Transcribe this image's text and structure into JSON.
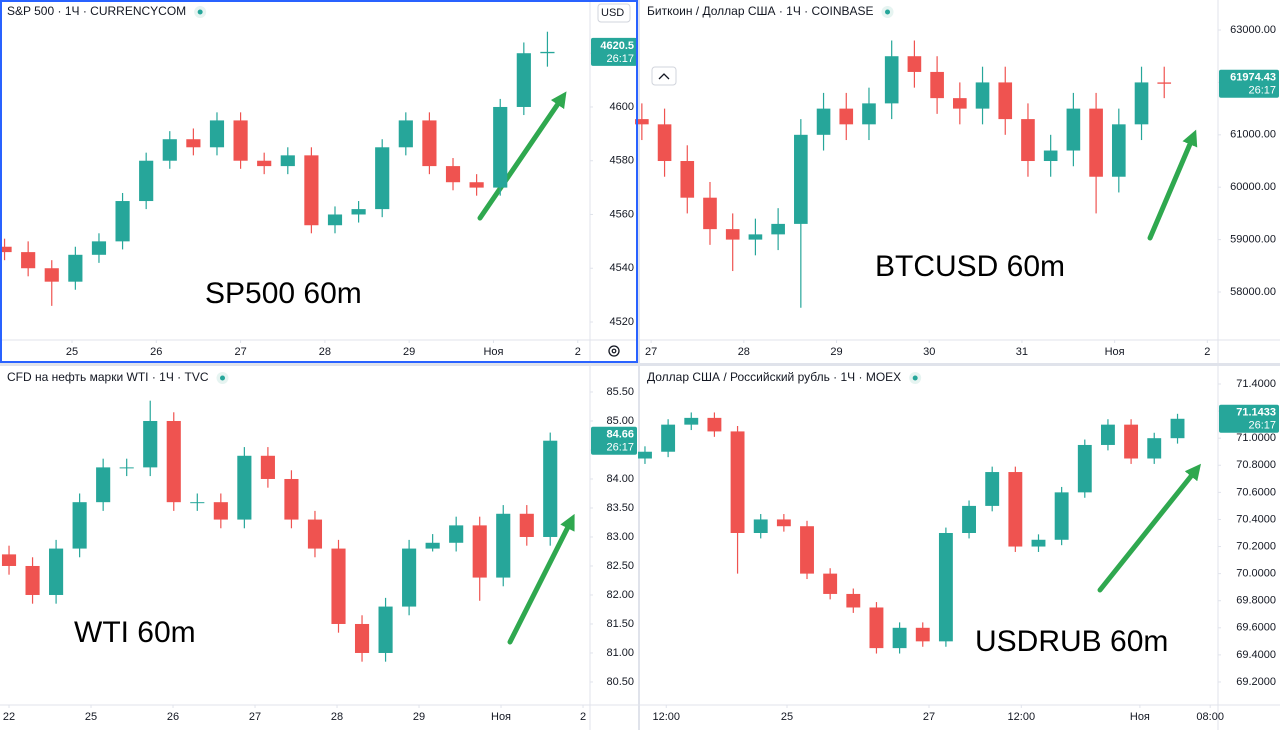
{
  "chart_data": [
    {
      "type": "candlestick",
      "title": "S&P 500 · 1Ч · CURRENCYCOM",
      "currency": "USD",
      "annotation": "SP500 60m",
      "up_color": "#26a69a",
      "down_color": "#ef5350",
      "grid": false,
      "x": [
        -0.8,
        -0.52,
        -0.24,
        0.04,
        0.32,
        0.6,
        0.88,
        1.16,
        1.44,
        1.72,
        2.0,
        2.28,
        2.56,
        2.84,
        3.12,
        3.4,
        3.68,
        3.96,
        4.24,
        4.52,
        4.8,
        5.08,
        5.36,
        5.64
      ],
      "open": [
        4548,
        4546,
        4540,
        4535,
        4545,
        4550,
        4565,
        4580,
        4588,
        4585,
        4595,
        4580,
        4578,
        4582,
        4556,
        4560,
        4562,
        4585,
        4595,
        4578,
        4572,
        4570,
        4600,
        4620
      ],
      "high": [
        4551,
        4550,
        4543,
        4548,
        4553,
        4568,
        4583,
        4591,
        4592,
        4598,
        4598,
        4583,
        4585,
        4585,
        4563,
        4565,
        4588,
        4598,
        4598,
        4581,
        4575,
        4603,
        4624,
        4628
      ],
      "low": [
        4543,
        4537,
        4526,
        4532,
        4542,
        4547,
        4562,
        4577,
        4582,
        4582,
        4577,
        4575,
        4575,
        4553,
        4553,
        4557,
        4559,
        4582,
        4575,
        4569,
        4567,
        4567,
        4597,
        4615
      ],
      "close": [
        4546,
        4540,
        4535,
        4545,
        4550,
        4565,
        4580,
        4588,
        4585,
        4595,
        4580,
        4578,
        4582,
        4556,
        4560,
        4562,
        4585,
        4595,
        4578,
        4572,
        4570,
        4600,
        4620,
        4620.5
      ],
      "xlim": [
        -0.854,
        6.145
      ],
      "xticks": [
        {
          "value": 0,
          "label": "25"
        },
        {
          "value": 1,
          "label": "26"
        },
        {
          "value": 2,
          "label": "27"
        },
        {
          "value": 3,
          "label": "28"
        },
        {
          "value": 4,
          "label": "29"
        },
        {
          "value": 5,
          "label": "Ноя"
        },
        {
          "value": 6,
          "label": "2"
        }
      ],
      "ylim": [
        4513.3,
        4639.8
      ],
      "yticks": [
        4520,
        4540,
        4560,
        4580,
        4600,
        4620
      ],
      "last_price": 4620.5,
      "timer": "26:17"
    },
    {
      "type": "candlestick",
      "title": "Биткоин / Доллар США · 1Ч · COINBASE",
      "annotation": "BTCUSD 60m",
      "up_color": "#26a69a",
      "down_color": "#ef5350",
      "grid": false,
      "x": [
        26.9,
        27.145,
        27.39,
        27.635,
        27.88,
        28.125,
        28.37,
        28.615,
        28.86,
        29.105,
        29.35,
        29.595,
        29.84,
        30.085,
        30.33,
        30.575,
        30.82,
        31.065,
        31.31,
        31.555,
        31.8,
        32.045,
        32.29,
        32.535
      ],
      "open": [
        61300,
        61200,
        60500,
        59800,
        59200,
        59000,
        59100,
        59300,
        61000,
        61500,
        61200,
        61600,
        62500,
        62200,
        61700,
        61500,
        62000,
        61300,
        60500,
        60700,
        61500,
        60200,
        61200,
        62000
      ],
      "high": [
        61600,
        61500,
        60800,
        60100,
        59500,
        59400,
        59600,
        61300,
        61800,
        61800,
        61900,
        62800,
        62800,
        62500,
        62000,
        62300,
        62300,
        61600,
        61000,
        61800,
        61800,
        61500,
        62300,
        62300
      ],
      "low": [
        60900,
        60200,
        59500,
        58900,
        58400,
        58700,
        58800,
        57700,
        60700,
        60900,
        60900,
        61300,
        61900,
        61400,
        61200,
        61200,
        61000,
        60200,
        60200,
        60400,
        59500,
        59900,
        60900,
        61700
      ],
      "close": [
        61200,
        60500,
        59800,
        59200,
        59000,
        59100,
        59300,
        61000,
        61500,
        61200,
        61600,
        62500,
        62200,
        61700,
        61500,
        62000,
        61300,
        60500,
        60700,
        61500,
        60200,
        61200,
        62000,
        61974.43
      ],
      "xlim": [
        26.88,
        33.115
      ],
      "xticks": [
        27,
        28,
        29,
        30,
        31,
        {
          "value": 32,
          "label": "Ноя"
        },
        {
          "value": 33,
          "label": "2"
        }
      ],
      "ylim": [
        57084,
        63573
      ],
      "yticks": [
        {
          "value": 58000,
          "label": "58000.00"
        },
        {
          "value": 59000,
          "label": "59000.00"
        },
        {
          "value": 60000,
          "label": "60000.00"
        },
        {
          "value": 61000,
          "label": "61000.00"
        },
        {
          "value": 62000,
          "label": "62000.00"
        },
        {
          "value": 63000,
          "label": "63000.00"
        }
      ],
      "last_price": 61974.43,
      "timer": "26:17"
    },
    {
      "type": "candlestick",
      "title": "CFD на нефть марки WTI · 1Ч · TVC",
      "annotation": "WTI 60m",
      "up_color": "#26a69a",
      "down_color": "#ef5350",
      "grid": false,
      "x": [
        0,
        0.287,
        0.574,
        0.861,
        1.148,
        1.435,
        1.722,
        2.009,
        2.296,
        2.583,
        2.87,
        3.157,
        3.444,
        3.731,
        4.018,
        4.305,
        4.592,
        4.879,
        5.166,
        5.453,
        5.74,
        6.027,
        6.314,
        6.6
      ],
      "open": [
        82.7,
        82.5,
        82.0,
        82.8,
        83.6,
        84.2,
        84.2,
        85.0,
        83.6,
        83.6,
        83.3,
        84.4,
        84.0,
        83.3,
        82.8,
        81.5,
        81.0,
        81.8,
        82.8,
        82.9,
        83.2,
        82.3,
        83.4,
        83.0
      ],
      "high": [
        82.85,
        82.65,
        82.95,
        83.75,
        84.35,
        84.35,
        85.35,
        85.15,
        83.75,
        83.75,
        84.55,
        84.55,
        84.15,
        83.45,
        82.95,
        81.65,
        81.95,
        82.95,
        83.05,
        83.35,
        83.35,
        83.55,
        83.55,
        84.8
      ],
      "low": [
        82.35,
        81.85,
        81.85,
        82.65,
        83.45,
        84.05,
        84.05,
        83.45,
        83.45,
        83.15,
        83.15,
        83.85,
        83.15,
        82.65,
        81.35,
        80.85,
        80.85,
        81.65,
        82.75,
        82.75,
        81.9,
        82.15,
        82.85,
        82.85
      ],
      "close": [
        82.5,
        82.0,
        82.8,
        83.6,
        84.2,
        84.2,
        85.0,
        83.6,
        83.6,
        83.3,
        84.4,
        84.0,
        83.3,
        82.8,
        81.5,
        81.0,
        81.8,
        82.8,
        82.9,
        83.2,
        82.3,
        83.4,
        83.0,
        84.66
      ],
      "xlim": [
        -0.11,
        7.085
      ],
      "xticks": [
        {
          "value": 0,
          "label": "22"
        },
        {
          "value": 1,
          "label": "25"
        },
        {
          "value": 2,
          "label": "26"
        },
        {
          "value": 3,
          "label": "27"
        },
        {
          "value": 4,
          "label": "28"
        },
        {
          "value": 5,
          "label": "29"
        },
        {
          "value": 6,
          "label": "Ноя"
        },
        {
          "value": 7,
          "label": "2"
        }
      ],
      "ylim": [
        80.103,
        85.948
      ],
      "yticks": [
        {
          "value": 80.5,
          "label": "80.50"
        },
        {
          "value": 81,
          "label": "81.00"
        },
        {
          "value": 81.5,
          "label": "81.50"
        },
        {
          "value": 82,
          "label": "82.00"
        },
        {
          "value": 82.5,
          "label": "82.50"
        },
        {
          "value": 83,
          "label": "83.00"
        },
        {
          "value": 83.5,
          "label": "83.50"
        },
        {
          "value": 84,
          "label": "84.00"
        },
        {
          "value": 84.5,
          "label": "84.50"
        },
        {
          "value": 85,
          "label": "85.00"
        },
        {
          "value": 85.5,
          "label": "85.50"
        }
      ],
      "last_price": 84.66,
      "timer": "26:17"
    },
    {
      "type": "candlestick",
      "title": "Доллар США / Российский рубль · 1Ч · MOEX",
      "annotation": "USDRUB 60m",
      "up_color": "#26a69a",
      "down_color": "#ef5350",
      "grid": false,
      "x": [
        -2.0,
        -1.674,
        -1.348,
        -1.022,
        -0.696,
        -0.37,
        -0.044,
        0.282,
        0.608,
        0.934,
        1.26,
        1.586,
        1.912,
        2.238,
        2.564,
        2.89,
        3.216,
        3.542,
        3.868,
        4.194,
        4.52,
        4.846,
        5.172,
        5.5
      ],
      "open": [
        70.85,
        70.9,
        71.1,
        71.15,
        71.05,
        70.3,
        70.4,
        70.35,
        70.0,
        69.85,
        69.75,
        69.45,
        69.6,
        69.5,
        70.3,
        70.5,
        70.75,
        70.2,
        70.25,
        70.6,
        70.95,
        71.1,
        70.85,
        71.0
      ],
      "high": [
        70.94,
        71.14,
        71.19,
        71.19,
        71.09,
        70.44,
        70.44,
        70.39,
        70.04,
        69.89,
        69.79,
        69.64,
        69.64,
        70.34,
        70.54,
        70.79,
        70.79,
        70.29,
        70.64,
        70.99,
        71.14,
        71.14,
        71.04,
        71.18
      ],
      "low": [
        70.81,
        70.86,
        71.06,
        71.01,
        70.0,
        70.26,
        70.31,
        69.96,
        69.81,
        69.71,
        69.41,
        69.41,
        69.46,
        69.46,
        70.26,
        70.46,
        70.16,
        70.16,
        70.21,
        70.56,
        70.91,
        70.81,
        70.81,
        70.96
      ],
      "close": [
        70.9,
        71.1,
        71.15,
        71.05,
        70.3,
        70.4,
        70.35,
        70.0,
        69.85,
        69.75,
        69.45,
        69.6,
        69.5,
        70.3,
        70.5,
        70.75,
        70.2,
        70.25,
        70.6,
        70.95,
        71.1,
        70.85,
        71.0,
        71.1433
      ],
      "xlim": [
        -2.07,
        6.07
      ],
      "xticks": [
        {
          "value": -1.7,
          "label": "12:00"
        },
        {
          "value": 0,
          "label": "25"
        },
        {
          "value": 2,
          "label": "27"
        },
        {
          "value": 3.3,
          "label": "12:00"
        },
        {
          "value": 4.97,
          "label": "Ноя"
        },
        {
          "value": 5.96,
          "label": "08:00"
        }
      ],
      "ylim": [
        69.03,
        71.533
      ],
      "yticks": [
        {
          "value": 69.2,
          "label": "69.2000"
        },
        {
          "value": 69.4,
          "label": "69.4000"
        },
        {
          "value": 69.6,
          "label": "69.6000"
        },
        {
          "value": 69.8,
          "label": "69.8000"
        },
        {
          "value": 70,
          "label": "70.0000"
        },
        {
          "value": 70.2,
          "label": "70.2000"
        },
        {
          "value": 70.4,
          "label": "70.4000"
        },
        {
          "value": 70.6,
          "label": "70.6000"
        },
        {
          "value": 70.8,
          "label": "70.8000"
        },
        {
          "value": 71,
          "label": "71.0000"
        },
        {
          "value": 71.2,
          "label": "71.2000"
        },
        {
          "value": 71.4,
          "label": "71.4000"
        }
      ],
      "last_price": 71.1433,
      "timer": "26:17"
    }
  ]
}
